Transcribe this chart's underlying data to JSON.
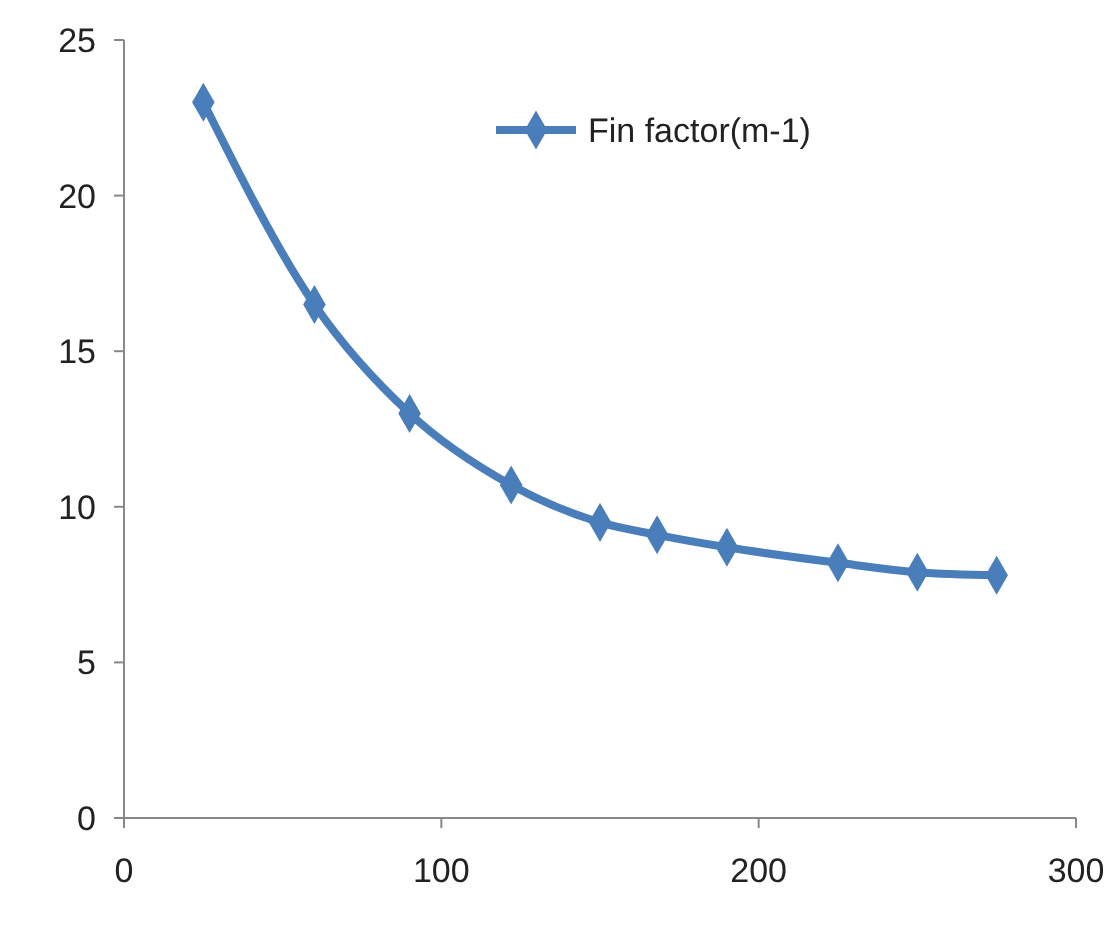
{
  "chart_data": {
    "type": "line",
    "x": [
      25,
      60,
      90,
      122,
      150,
      168,
      190,
      225,
      250,
      275
    ],
    "series": [
      {
        "name": "Fin factor(m-1)",
        "color": "#4a7ebb",
        "values": [
          23,
          16.5,
          13,
          10.7,
          9.5,
          9.1,
          8.7,
          8.2,
          7.9,
          7.8
        ]
      }
    ],
    "xlim": [
      0,
      300
    ],
    "xticks": [
      0,
      100,
      200,
      300
    ],
    "ylim": [
      0,
      25
    ],
    "yticks": [
      0,
      5,
      10,
      15,
      20,
      25
    ],
    "grid": false,
    "legend": "top right",
    "marker": "diamond",
    "line_style": "solid"
  }
}
